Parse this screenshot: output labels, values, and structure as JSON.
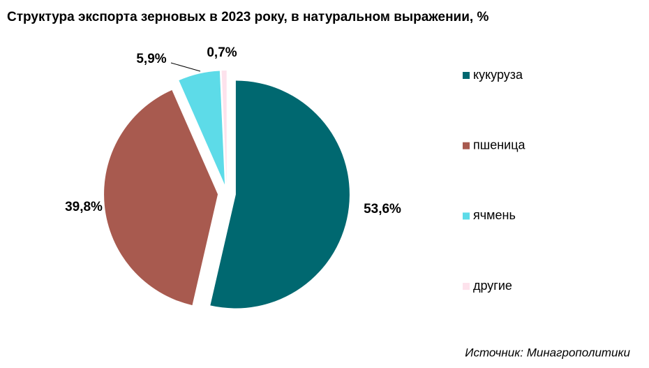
{
  "chart_data": {
    "type": "pie",
    "title": "Структура экспорта зерновых в 2023 року, в натуральном выражении, %",
    "categories": [
      "кукуруза",
      "пшеница",
      "ячмень",
      "другие"
    ],
    "values": [
      53.6,
      39.8,
      5.9,
      0.7
    ],
    "value_labels": [
      "53,6%",
      "39,8%",
      "5,9%",
      "0,7%"
    ],
    "colors": [
      "#006870",
      "#a85a4f",
      "#5ddbe8",
      "#fde2ec"
    ],
    "source": "Источник: Минагрополитики"
  }
}
